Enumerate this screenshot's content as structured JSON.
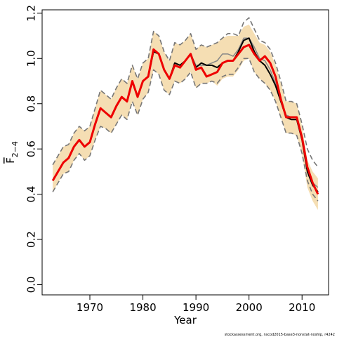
{
  "chart_data": {
    "type": "line",
    "xlabel": "Year",
    "ylabel": "F",
    "ylabel_subscript": "2−4",
    "footer": "stockassessment.org, nscod2015-base3-nonstat-noship, r4242",
    "x": [
      1963,
      1964,
      1965,
      1966,
      1967,
      1968,
      1969,
      1970,
      1971,
      1972,
      1973,
      1974,
      1975,
      1976,
      1977,
      1978,
      1979,
      1980,
      1981,
      1982,
      1983,
      1984,
      1985,
      1986,
      1987,
      1988,
      1989,
      1990,
      1991,
      1992,
      1993,
      1994,
      1995,
      1996,
      1997,
      1998,
      1999,
      2000,
      2001,
      2002,
      2003,
      2004,
      2005,
      2006,
      2007,
      2008,
      2009,
      2010,
      2011,
      2012,
      2013
    ],
    "xlim": [
      1961,
      2015
    ],
    "xticks": [
      1970,
      1980,
      1990,
      2000,
      2010
    ],
    "ylim": [
      -0.045,
      1.215
    ],
    "yticks": [
      {
        "value": 0,
        "label": "0.0"
      },
      0.2,
      0.4,
      0.6,
      0.8,
      {
        "value": 1,
        "label": "1.0"
      },
      1.2
    ],
    "band": {
      "color": "#f5deb3",
      "upper": [
        0.53,
        0.57,
        0.61,
        0.62,
        0.67,
        0.7,
        0.68,
        0.7,
        0.78,
        0.86,
        0.84,
        0.82,
        0.87,
        0.91,
        0.89,
        0.97,
        0.91,
        0.98,
        1.0,
        1.12,
        1.1,
        1.03,
        0.99,
        1.07,
        1.06,
        1.08,
        1.11,
        1.04,
        1.06,
        1.05,
        1.06,
        1.07,
        1.09,
        1.1,
        1.1,
        1.1,
        1.14,
        1.15,
        1.11,
        1.07,
        1.06,
        1.03,
        0.97,
        0.89,
        0.81,
        0.81,
        0.8,
        0.7,
        0.55,
        0.5,
        0.47
      ],
      "lower": [
        0.41,
        0.45,
        0.49,
        0.5,
        0.55,
        0.58,
        0.55,
        0.57,
        0.64,
        0.7,
        0.69,
        0.67,
        0.71,
        0.75,
        0.73,
        0.81,
        0.75,
        0.82,
        0.85,
        0.95,
        0.93,
        0.86,
        0.84,
        0.9,
        0.89,
        0.91,
        0.94,
        0.87,
        0.89,
        0.89,
        0.9,
        0.88,
        0.91,
        0.92,
        0.92,
        0.95,
        0.99,
        1.0,
        0.94,
        0.91,
        0.89,
        0.86,
        0.81,
        0.74,
        0.67,
        0.67,
        0.66,
        0.58,
        0.43,
        0.37,
        0.33
      ]
    },
    "series": [
      {
        "color": "#777777",
        "dashed": true,
        "values": [
          0.53,
          0.57,
          0.61,
          0.62,
          0.67,
          0.7,
          0.68,
          0.7,
          0.78,
          0.86,
          0.84,
          0.82,
          0.87,
          0.91,
          0.89,
          0.97,
          0.91,
          0.98,
          1.0,
          1.12,
          1.1,
          1.03,
          0.99,
          1.07,
          1.06,
          1.08,
          1.11,
          1.04,
          1.06,
          1.05,
          1.06,
          1.07,
          1.09,
          1.11,
          1.11,
          1.1,
          1.16,
          1.18,
          1.13,
          1.08,
          1.07,
          1.04,
          0.98,
          0.9,
          0.81,
          0.81,
          0.8,
          0.71,
          0.6,
          0.55,
          0.52
        ]
      },
      {
        "color": "#777777",
        "dashed": true,
        "values": [
          0.41,
          0.45,
          0.49,
          0.5,
          0.55,
          0.58,
          0.55,
          0.57,
          0.64,
          0.7,
          0.69,
          0.67,
          0.71,
          0.75,
          0.73,
          0.81,
          0.75,
          0.82,
          0.85,
          0.95,
          0.93,
          0.86,
          0.84,
          0.9,
          0.89,
          0.91,
          0.94,
          0.87,
          0.89,
          0.89,
          0.9,
          0.89,
          0.92,
          0.93,
          0.93,
          0.96,
          1.0,
          1.0,
          0.94,
          0.91,
          0.89,
          0.86,
          0.81,
          0.74,
          0.67,
          0.67,
          0.66,
          0.58,
          0.46,
          0.4,
          0.37
        ]
      },
      {
        "color": "#888888",
        "dashed": false,
        "width": 1.5,
        "values": [
          0.46,
          0.5,
          0.54,
          0.56,
          0.61,
          0.64,
          0.61,
          0.63,
          0.71,
          0.78,
          0.76,
          0.74,
          0.79,
          0.83,
          0.81,
          0.9,
          0.83,
          0.9,
          0.92,
          1.04,
          1.02,
          0.95,
          0.91,
          0.98,
          0.97,
          0.99,
          1.02,
          0.97,
          0.97,
          0.97,
          0.98,
          0.99,
          1.02,
          1.02,
          1.01,
          1.04,
          1.09,
          1.09,
          1.05,
          1.0,
          0.99,
          0.95,
          0.89,
          0.82,
          0.75,
          0.74,
          0.74,
          0.65,
          0.51,
          0.45,
          0.43
        ]
      },
      {
        "color": "#000000",
        "dashed": false,
        "width": 2,
        "values": [
          0.46,
          0.5,
          0.54,
          0.56,
          0.61,
          0.64,
          0.61,
          0.63,
          0.71,
          0.78,
          0.76,
          0.74,
          0.79,
          0.83,
          0.81,
          0.9,
          0.83,
          0.9,
          0.92,
          1.03,
          1.02,
          0.95,
          0.91,
          0.98,
          0.97,
          0.99,
          1.02,
          0.96,
          0.98,
          0.97,
          0.97,
          0.96,
          0.98,
          0.99,
          0.99,
          1.03,
          1.08,
          1.09,
          1.03,
          0.99,
          0.97,
          0.93,
          0.88,
          0.81,
          0.74,
          0.73,
          0.73,
          0.64,
          0.5,
          0.44,
          0.41
        ]
      },
      {
        "color": "#ee0000",
        "dashed": false,
        "width": 3,
        "values": [
          0.46,
          0.5,
          0.54,
          0.56,
          0.61,
          0.64,
          0.61,
          0.63,
          0.71,
          0.78,
          0.76,
          0.74,
          0.79,
          0.83,
          0.81,
          0.9,
          0.83,
          0.9,
          0.92,
          1.04,
          1.02,
          0.95,
          0.91,
          0.97,
          0.96,
          0.99,
          1.02,
          0.95,
          0.96,
          0.92,
          0.93,
          0.94,
          0.98,
          0.99,
          0.99,
          1.02,
          1.05,
          1.06,
          1.02,
          0.99,
          1.01,
          0.98,
          0.92,
          0.82,
          0.74,
          0.74,
          0.74,
          0.65,
          0.52,
          0.45,
          0.4
        ]
      }
    ]
  }
}
